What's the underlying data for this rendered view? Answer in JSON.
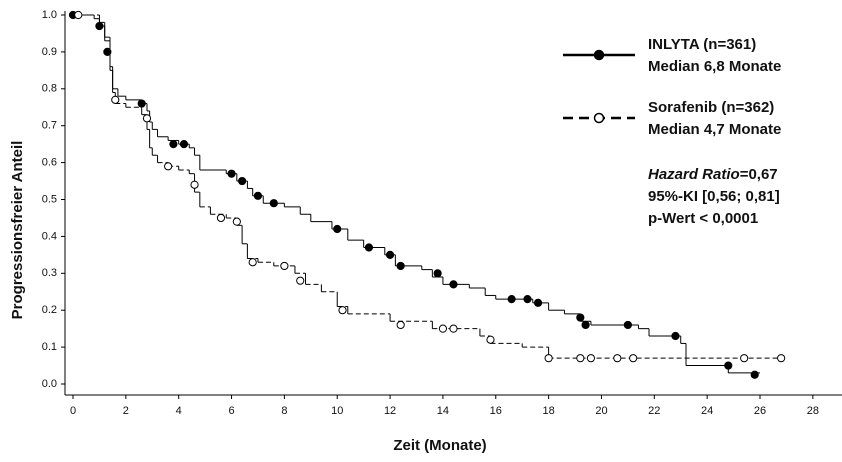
{
  "chart_data": {
    "type": "step",
    "x_label": "Zeit (Monate)",
    "y_label": "Progressionsfreier Anteil",
    "xlim": [
      0,
      28
    ],
    "xticks": [
      0,
      2,
      4,
      6,
      8,
      10,
      12,
      14,
      16,
      18,
      20,
      22,
      24,
      26,
      28
    ],
    "ylim": [
      0,
      1
    ],
    "yticks": [
      {
        "value": 0,
        "label": "0.0"
      },
      0.1,
      0.2,
      0.3,
      0.4,
      0.5,
      0.6,
      0.7,
      0.8,
      0.9,
      {
        "value": 1,
        "label": "1.0"
      }
    ],
    "hazard_ratio_label": "Hazard Ratio",
    "hazard_ratio_value": "=0,67",
    "ci_text": "95%-KI [0,56; 0,81]",
    "p_text": "p-Wert < 0,0001",
    "series": [
      {
        "name": "INLYTA (n=361)",
        "median": "Median 6,8 Monate",
        "color": "#000000",
        "dashed": false,
        "marker_filled": true,
        "x": [
          0,
          0.8,
          1.0,
          1.2,
          1.4,
          1.5,
          1.7,
          2.0,
          2.6,
          2.8,
          2.9,
          3.0,
          3.2,
          3.6,
          4.0,
          4.4,
          4.6,
          4.8,
          5.8,
          6.2,
          6.6,
          6.8,
          7.2,
          8.0,
          8.6,
          9.0,
          9.8,
          10.4,
          11.0,
          11.8,
          12.2,
          13.2,
          13.6,
          14.0,
          15.0,
          15.6,
          16.0,
          17.4,
          18.0,
          18.6,
          19.2,
          19.6,
          21.4,
          21.8,
          23.0,
          23.2,
          24.8,
          26.0
        ],
        "values": [
          1.0,
          0.99,
          0.97,
          0.93,
          0.85,
          0.8,
          0.78,
          0.77,
          0.76,
          0.74,
          0.71,
          0.69,
          0.67,
          0.66,
          0.65,
          0.64,
          0.62,
          0.58,
          0.57,
          0.55,
          0.53,
          0.51,
          0.49,
          0.48,
          0.46,
          0.44,
          0.42,
          0.39,
          0.37,
          0.35,
          0.32,
          0.31,
          0.29,
          0.27,
          0.26,
          0.24,
          0.23,
          0.22,
          0.2,
          0.19,
          0.17,
          0.16,
          0.15,
          0.13,
          0.11,
          0.05,
          0.03,
          0.03
        ],
        "censored_x": [
          0,
          1.0,
          1.3,
          2.6,
          3.8,
          4.2,
          6.0,
          6.4,
          7.0,
          7.6,
          10.0,
          11.2,
          12.0,
          12.4,
          13.8,
          14.4,
          16.6,
          17.2,
          17.6,
          19.2,
          19.4,
          21.0,
          22.8,
          24.8,
          25.8
        ],
        "censored_values": [
          1.0,
          0.97,
          0.9,
          0.76,
          0.65,
          0.65,
          0.57,
          0.55,
          0.51,
          0.49,
          0.42,
          0.37,
          0.35,
          0.32,
          0.3,
          0.27,
          0.23,
          0.23,
          0.22,
          0.18,
          0.16,
          0.16,
          0.13,
          0.05,
          0.025
        ]
      },
      {
        "name": "Sorafenib (n=362)",
        "median": "Median 4,7 Monate",
        "color": "#000000",
        "dashed": true,
        "marker_filled": false,
        "x": [
          0,
          1.0,
          1.2,
          1.4,
          1.5,
          1.6,
          2.0,
          2.6,
          2.8,
          2.9,
          3.0,
          3.2,
          3.6,
          4.0,
          4.4,
          4.6,
          4.8,
          5.2,
          5.8,
          6.2,
          6.4,
          6.6,
          7.0,
          7.6,
          8.4,
          8.8,
          9.4,
          10.0,
          10.4,
          12.0,
          13.6,
          15.4,
          15.8,
          17.0,
          18.0,
          26.8
        ],
        "values": [
          1.0,
          0.98,
          0.94,
          0.86,
          0.79,
          0.76,
          0.75,
          0.73,
          0.69,
          0.64,
          0.62,
          0.6,
          0.59,
          0.58,
          0.57,
          0.52,
          0.48,
          0.46,
          0.45,
          0.43,
          0.38,
          0.34,
          0.33,
          0.32,
          0.3,
          0.27,
          0.25,
          0.21,
          0.19,
          0.17,
          0.15,
          0.13,
          0.11,
          0.1,
          0.07,
          0.07
        ],
        "censored_x": [
          0.2,
          1.6,
          2.8,
          3.6,
          4.6,
          5.6,
          6.2,
          6.8,
          8.0,
          8.6,
          10.2,
          12.4,
          14.0,
          14.4,
          15.8,
          18.0,
          19.2,
          19.6,
          20.6,
          21.2,
          25.4,
          26.8
        ],
        "censored_values": [
          1.0,
          0.77,
          0.72,
          0.59,
          0.54,
          0.45,
          0.44,
          0.33,
          0.32,
          0.28,
          0.2,
          0.16,
          0.15,
          0.15,
          0.12,
          0.07,
          0.07,
          0.07,
          0.07,
          0.07,
          0.07,
          0.07
        ]
      }
    ]
  }
}
